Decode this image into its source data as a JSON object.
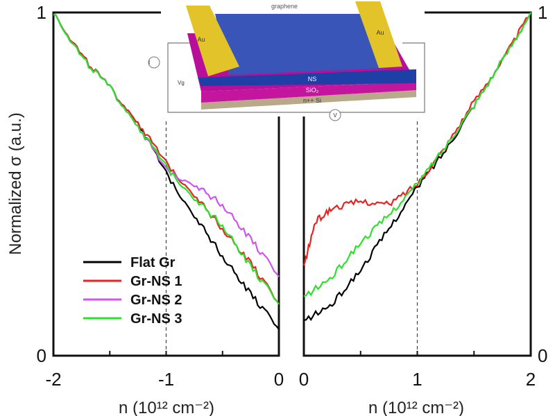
{
  "chart_data": {
    "type": "line",
    "ylabel": "Normalized σ (a.u.)",
    "legend_position": "lower-left of left panel",
    "legend": [
      "Flat Gr",
      "Gr-NS 1",
      "Gr-NS 2",
      "Gr-NS 3"
    ],
    "colors": {
      "Flat Gr": "#000000",
      "Gr-NS 1": "#e8231f",
      "Gr-NS 2": "#cc55ee",
      "Gr-NS 3": "#2ee02e"
    },
    "panels": [
      {
        "xlabel": "n (10¹² cm⁻²)",
        "xlim": [
          -2,
          0
        ],
        "ylim": [
          0,
          1
        ],
        "xticks": [
          "-2",
          "-1",
          "0"
        ],
        "yticks": [
          "0",
          "1"
        ],
        "dashed_line_x": -1,
        "series": [
          {
            "name": "Flat Gr",
            "x": [
              -2,
              -1.75,
              -1.5,
              -1.25,
              -1,
              -0.75,
              -0.5,
              -0.25,
              0
            ],
            "y": [
              1,
              0.875,
              0.78,
              0.68,
              0.53,
              0.41,
              0.29,
              0.18,
              0.077
            ]
          },
          {
            "name": "Gr-NS 1",
            "x": [
              -2,
              -1.75,
              -1.5,
              -1.25,
              -1,
              -0.75,
              -0.5,
              -0.25,
              0
            ],
            "y": [
              1,
              0.875,
              0.78,
              0.68,
              0.56,
              0.47,
              0.37,
              0.27,
              0.15
            ]
          },
          {
            "name": "Gr-NS 2",
            "x": [
              -2,
              -1.75,
              -1.5,
              -1.25,
              -1,
              -0.75,
              -0.5,
              -0.25,
              0
            ],
            "y": [
              1,
              0.87,
              0.78,
              0.67,
              0.54,
              0.5,
              0.44,
              0.34,
              0.23
            ]
          },
          {
            "name": "Gr-NS 3",
            "x": [
              -2,
              -1.75,
              -1.5,
              -1.25,
              -1,
              -0.75,
              -0.5,
              -0.25,
              0
            ],
            "y": [
              1,
              0.87,
              0.78,
              0.67,
              0.55,
              0.46,
              0.38,
              0.26,
              0.15
            ]
          }
        ]
      },
      {
        "xlabel": "n (10¹² cm⁻²)",
        "xlim": [
          0,
          2
        ],
        "ylim": [
          0,
          1
        ],
        "xticks": [
          "0",
          "1",
          "2"
        ],
        "yticks": [
          "0",
          "1"
        ],
        "dashed_line_x": 1,
        "series": [
          {
            "name": "Flat Gr",
            "x": [
              0,
              0.25,
              0.5,
              0.75,
              1,
              1.25,
              1.5,
              1.75,
              2
            ],
            "y": [
              0.1,
              0.15,
              0.25,
              0.37,
              0.49,
              0.6,
              0.73,
              0.86,
              1
            ]
          },
          {
            "name": "Gr-NS 1",
            "x": [
              0,
              0.1,
              0.25,
              0.5,
              0.75,
              1,
              1.25,
              1.5,
              1.75,
              2
            ],
            "y": [
              0.26,
              0.39,
              0.43,
              0.45,
              0.44,
              0.5,
              0.61,
              0.74,
              0.86,
              1
            ]
          },
          {
            "name": "Gr-NS 3",
            "x": [
              0,
              0.25,
              0.5,
              0.75,
              1,
              1.25,
              1.5,
              1.75,
              2
            ],
            "y": [
              0.17,
              0.23,
              0.33,
              0.41,
              0.5,
              0.61,
              0.73,
              0.86,
              1
            ]
          }
        ]
      }
    ]
  },
  "inset": {
    "graphene": "graphene",
    "au_left": "Au",
    "au_right": "Au",
    "ns": "NS",
    "sio2": "SiO₂",
    "si": "n++ Si",
    "current": "I",
    "vg": "Vg",
    "voltmeter": "V"
  }
}
